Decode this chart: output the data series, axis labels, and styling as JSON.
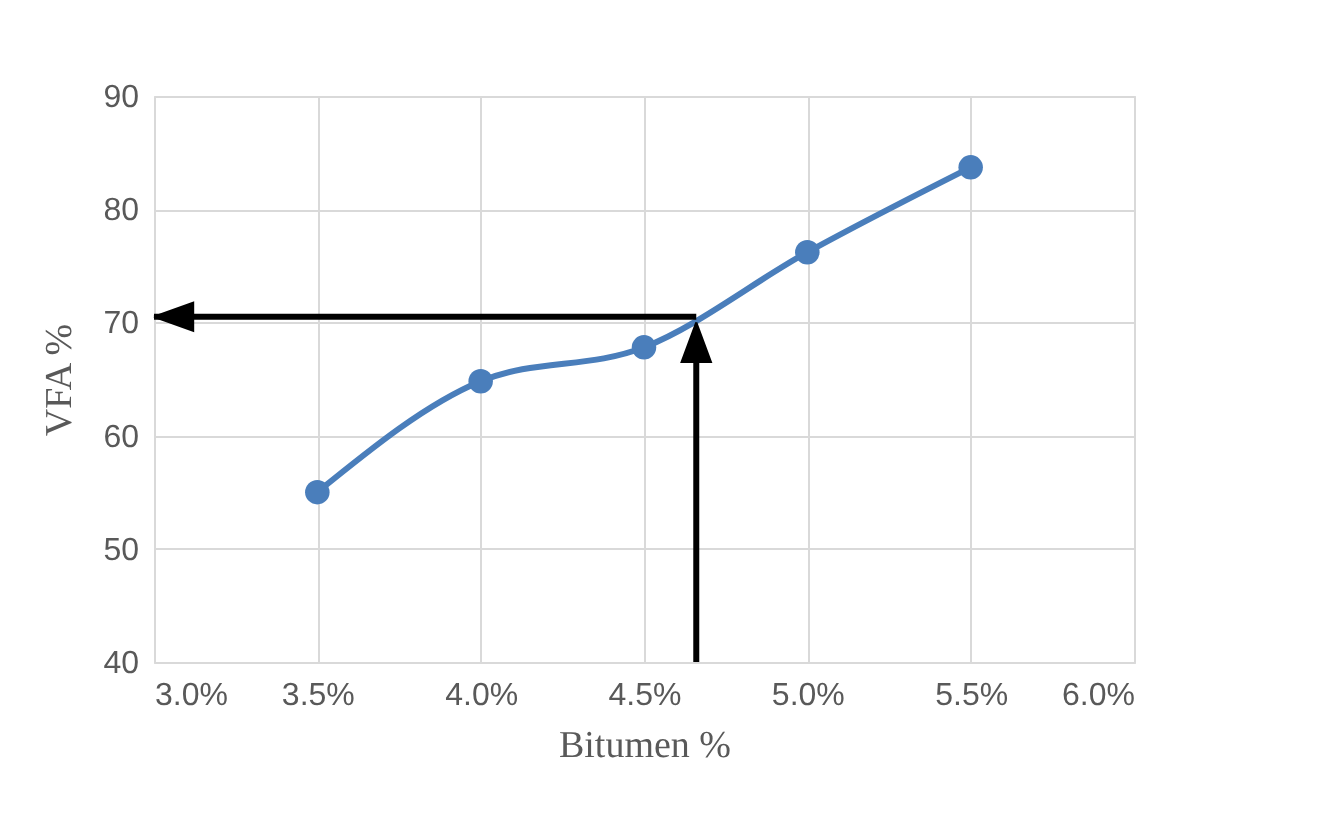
{
  "chart_data": {
    "type": "line",
    "xlabel": "Bitumen %",
    "ylabel": "VFA %",
    "x": [
      3.5,
      4.0,
      4.5,
      5.0,
      5.5
    ],
    "series": [
      {
        "color": "#4a7ebb",
        "values": [
          55,
          64.8,
          67.8,
          76.2,
          83.7
        ]
      }
    ],
    "xlim": [
      3.0,
      6.0
    ],
    "xticks": [
      {
        "value": 3.0,
        "label": "3.0%"
      },
      {
        "value": 3.5,
        "label": "3.5%"
      },
      {
        "value": 4.0,
        "label": "4.0%"
      },
      {
        "value": 4.5,
        "label": "4.5%"
      },
      {
        "value": 5.0,
        "label": "5.0%"
      },
      {
        "value": 5.5,
        "label": "5.5%"
      },
      {
        "value": 6.0,
        "label": "6.0%"
      }
    ],
    "ylim": [
      40,
      90
    ],
    "yticks": [
      40,
      50,
      60,
      70,
      80,
      90
    ],
    "ref_lines": [
      {
        "axis": "y",
        "value": 70.5,
        "color": "#000000"
      },
      {
        "axis": "x",
        "value": 4.66,
        "color": "#000000"
      }
    ],
    "grid": true,
    "marker": "circle",
    "line_style": "solid"
  }
}
